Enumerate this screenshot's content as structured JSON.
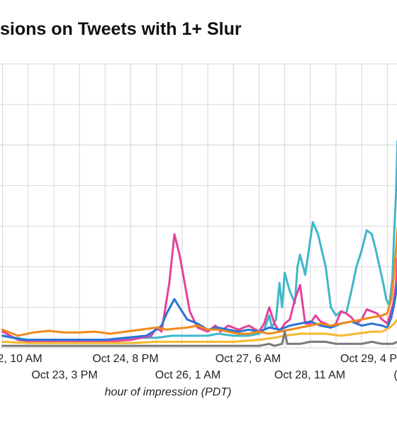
{
  "chart_data": {
    "type": "line",
    "title": "sions on Tweets with 1+ Slur",
    "xlabel": "hour of impression (PDT)",
    "ylabel": "",
    "x_ticks_upper": [
      "2, 10 AM",
      "Oct 24, 8 PM",
      "Oct 27, 6 AM",
      "Oct 29, 4 P"
    ],
    "x_ticks_lower": [
      "Oct 23, 3 PM",
      "Oct 26, 1 AM",
      "Oct 28, 11 AM",
      "("
    ],
    "grid": true,
    "x_unit": "days since Oct 22, 10 AM",
    "xlim": [
      -0.05,
      7.69
    ],
    "ylim": [
      0,
      7
    ],
    "series": [
      {
        "color": "#3fb8c8",
        "points": [
          [
            0,
            0.3
          ],
          [
            0.5,
            0.2
          ],
          [
            1,
            0.2
          ],
          [
            1.5,
            0.2
          ],
          [
            2,
            0.2
          ],
          [
            2.5,
            0.25
          ],
          [
            3,
            0.25
          ],
          [
            3.3,
            0.3
          ],
          [
            3.6,
            0.3
          ],
          [
            4,
            0.3
          ],
          [
            4.2,
            0.35
          ],
          [
            4.5,
            0.3
          ],
          [
            4.8,
            0.3
          ],
          [
            5.0,
            0.35
          ],
          [
            5.1,
            0.45
          ],
          [
            5.2,
            0.8
          ],
          [
            5.25,
            0.5
          ],
          [
            5.33,
            0.7
          ],
          [
            5.4,
            1.6
          ],
          [
            5.45,
            1.0
          ],
          [
            5.5,
            1.85
          ],
          [
            5.6,
            1.4
          ],
          [
            5.7,
            1.1
          ],
          [
            5.75,
            2.0
          ],
          [
            5.8,
            2.3
          ],
          [
            5.9,
            1.8
          ],
          [
            6.05,
            3.1
          ],
          [
            6.15,
            2.8
          ],
          [
            6.3,
            2.0
          ],
          [
            6.4,
            1.0
          ],
          [
            6.45,
            0.9
          ],
          [
            6.5,
            0.8
          ],
          [
            6.6,
            0.9
          ],
          [
            6.7,
            0.85
          ],
          [
            6.8,
            1.4
          ],
          [
            6.9,
            2.0
          ],
          [
            7.0,
            2.4
          ],
          [
            7.1,
            2.9
          ],
          [
            7.2,
            2.8
          ],
          [
            7.28,
            2.4
          ],
          [
            7.35,
            2.0
          ],
          [
            7.42,
            1.6
          ],
          [
            7.48,
            1.2
          ],
          [
            7.54,
            1.05
          ],
          [
            7.6,
            1.7
          ],
          [
            7.63,
            2.7
          ],
          [
            7.67,
            3.8
          ],
          [
            7.7,
            5.1
          ]
        ]
      },
      {
        "color": "#e6419b",
        "points": [
          [
            0,
            0.4
          ],
          [
            0.3,
            0.2
          ],
          [
            0.6,
            0.15
          ],
          [
            1,
            0.15
          ],
          [
            1.5,
            0.15
          ],
          [
            2,
            0.15
          ],
          [
            2.5,
            0.2
          ],
          [
            2.9,
            0.3
          ],
          [
            3.0,
            0.5
          ],
          [
            3.1,
            0.4
          ],
          [
            3.25,
            1.6
          ],
          [
            3.35,
            2.8
          ],
          [
            3.45,
            2.3
          ],
          [
            3.55,
            1.6
          ],
          [
            3.65,
            0.9
          ],
          [
            3.8,
            0.5
          ],
          [
            4.0,
            0.4
          ],
          [
            4.15,
            0.55
          ],
          [
            4.25,
            0.4
          ],
          [
            4.4,
            0.55
          ],
          [
            4.6,
            0.45
          ],
          [
            4.8,
            0.55
          ],
          [
            5.0,
            0.4
          ],
          [
            5.1,
            0.6
          ],
          [
            5.2,
            1.0
          ],
          [
            5.3,
            0.6
          ],
          [
            5.4,
            0.4
          ],
          [
            5.5,
            0.6
          ],
          [
            5.6,
            0.7
          ],
          [
            5.7,
            1.2
          ],
          [
            5.8,
            1.55
          ],
          [
            5.9,
            0.6
          ],
          [
            6.0,
            0.6
          ],
          [
            6.1,
            0.8
          ],
          [
            6.2,
            0.65
          ],
          [
            6.3,
            0.6
          ],
          [
            6.4,
            0.5
          ],
          [
            6.5,
            0.6
          ],
          [
            6.6,
            0.9
          ],
          [
            6.7,
            0.85
          ],
          [
            6.8,
            0.75
          ],
          [
            6.9,
            0.6
          ],
          [
            7.0,
            0.7
          ],
          [
            7.1,
            0.95
          ],
          [
            7.2,
            0.9
          ],
          [
            7.3,
            0.85
          ],
          [
            7.4,
            0.7
          ],
          [
            7.5,
            0.6
          ],
          [
            7.55,
            0.8
          ],
          [
            7.62,
            1.1
          ],
          [
            7.67,
            1.6
          ],
          [
            7.7,
            2.2
          ]
        ]
      },
      {
        "color": "#2a74d6",
        "points": [
          [
            0,
            0.3
          ],
          [
            0.4,
            0.2
          ],
          [
            0.8,
            0.2
          ],
          [
            1.2,
            0.2
          ],
          [
            1.6,
            0.2
          ],
          [
            2.0,
            0.2
          ],
          [
            2.4,
            0.25
          ],
          [
            2.8,
            0.3
          ],
          [
            3.0,
            0.45
          ],
          [
            3.1,
            0.55
          ],
          [
            3.2,
            0.85
          ],
          [
            3.35,
            1.2
          ],
          [
            3.5,
            0.9
          ],
          [
            3.6,
            0.7
          ],
          [
            3.8,
            0.6
          ],
          [
            4.0,
            0.45
          ],
          [
            4.2,
            0.5
          ],
          [
            4.4,
            0.45
          ],
          [
            4.6,
            0.4
          ],
          [
            4.8,
            0.45
          ],
          [
            5.0,
            0.4
          ],
          [
            5.2,
            0.5
          ],
          [
            5.4,
            0.45
          ],
          [
            5.6,
            0.55
          ],
          [
            5.8,
            0.6
          ],
          [
            6.0,
            0.65
          ],
          [
            6.2,
            0.55
          ],
          [
            6.4,
            0.5
          ],
          [
            6.6,
            0.6
          ],
          [
            6.8,
            0.65
          ],
          [
            7.0,
            0.55
          ],
          [
            7.2,
            0.6
          ],
          [
            7.4,
            0.55
          ],
          [
            7.5,
            0.5
          ],
          [
            7.58,
            0.75
          ],
          [
            7.63,
            1.05
          ],
          [
            7.67,
            1.35
          ],
          [
            7.7,
            1.6
          ]
        ]
      },
      {
        "color": "#f08a1c",
        "points": [
          [
            0,
            0.45
          ],
          [
            0.3,
            0.3
          ],
          [
            0.6,
            0.38
          ],
          [
            0.9,
            0.42
          ],
          [
            1.2,
            0.38
          ],
          [
            1.5,
            0.38
          ],
          [
            1.8,
            0.4
          ],
          [
            2.1,
            0.35
          ],
          [
            2.4,
            0.4
          ],
          [
            2.7,
            0.45
          ],
          [
            3.0,
            0.5
          ],
          [
            3.2,
            0.45
          ],
          [
            3.4,
            0.48
          ],
          [
            3.6,
            0.5
          ],
          [
            3.8,
            0.55
          ],
          [
            4.0,
            0.45
          ],
          [
            4.2,
            0.45
          ],
          [
            4.4,
            0.4
          ],
          [
            4.6,
            0.35
          ],
          [
            4.8,
            0.35
          ],
          [
            5.0,
            0.4
          ],
          [
            5.2,
            0.35
          ],
          [
            5.4,
            0.4
          ],
          [
            5.6,
            0.45
          ],
          [
            5.8,
            0.5
          ],
          [
            6.0,
            0.55
          ],
          [
            6.2,
            0.6
          ],
          [
            6.4,
            0.55
          ],
          [
            6.6,
            0.6
          ],
          [
            6.8,
            0.65
          ],
          [
            7.0,
            0.7
          ],
          [
            7.2,
            0.75
          ],
          [
            7.4,
            0.8
          ],
          [
            7.5,
            0.85
          ],
          [
            7.58,
            1.2
          ],
          [
            7.63,
            1.8
          ],
          [
            7.67,
            2.4
          ],
          [
            7.7,
            2.95
          ]
        ]
      },
      {
        "color": "#f5b82e",
        "points": [
          [
            0,
            0.15
          ],
          [
            0.5,
            0.12
          ],
          [
            1,
            0.12
          ],
          [
            1.5,
            0.12
          ],
          [
            2,
            0.12
          ],
          [
            2.5,
            0.12
          ],
          [
            3,
            0.15
          ],
          [
            3.5,
            0.15
          ],
          [
            4,
            0.15
          ],
          [
            4.5,
            0.15
          ],
          [
            5,
            0.2
          ],
          [
            5.3,
            0.25
          ],
          [
            5.5,
            0.3
          ],
          [
            5.8,
            0.35
          ],
          [
            6.0,
            0.35
          ],
          [
            6.3,
            0.35
          ],
          [
            6.6,
            0.3
          ],
          [
            6.9,
            0.35
          ],
          [
            7.2,
            0.4
          ],
          [
            7.4,
            0.4
          ],
          [
            7.55,
            0.5
          ],
          [
            7.63,
            0.6
          ],
          [
            7.7,
            0.7
          ]
        ]
      },
      {
        "color": "#7a7a7a",
        "points": [
          [
            0,
            0.05
          ],
          [
            1,
            0.05
          ],
          [
            2,
            0.05
          ],
          [
            3,
            0.05
          ],
          [
            3.5,
            0.05
          ],
          [
            4,
            0.05
          ],
          [
            4.5,
            0.05
          ],
          [
            5.0,
            0.05
          ],
          [
            5.2,
            0.1
          ],
          [
            5.3,
            0.05
          ],
          [
            5.45,
            0.1
          ],
          [
            5.5,
            0.4
          ],
          [
            5.55,
            0.1
          ],
          [
            5.8,
            0.1
          ],
          [
            6.0,
            0.15
          ],
          [
            6.3,
            0.15
          ],
          [
            6.5,
            0.1
          ],
          [
            6.8,
            0.1
          ],
          [
            7.0,
            0.1
          ],
          [
            7.2,
            0.15
          ],
          [
            7.4,
            0.1
          ],
          [
            7.6,
            0.1
          ],
          [
            7.7,
            0.15
          ]
        ]
      }
    ]
  }
}
